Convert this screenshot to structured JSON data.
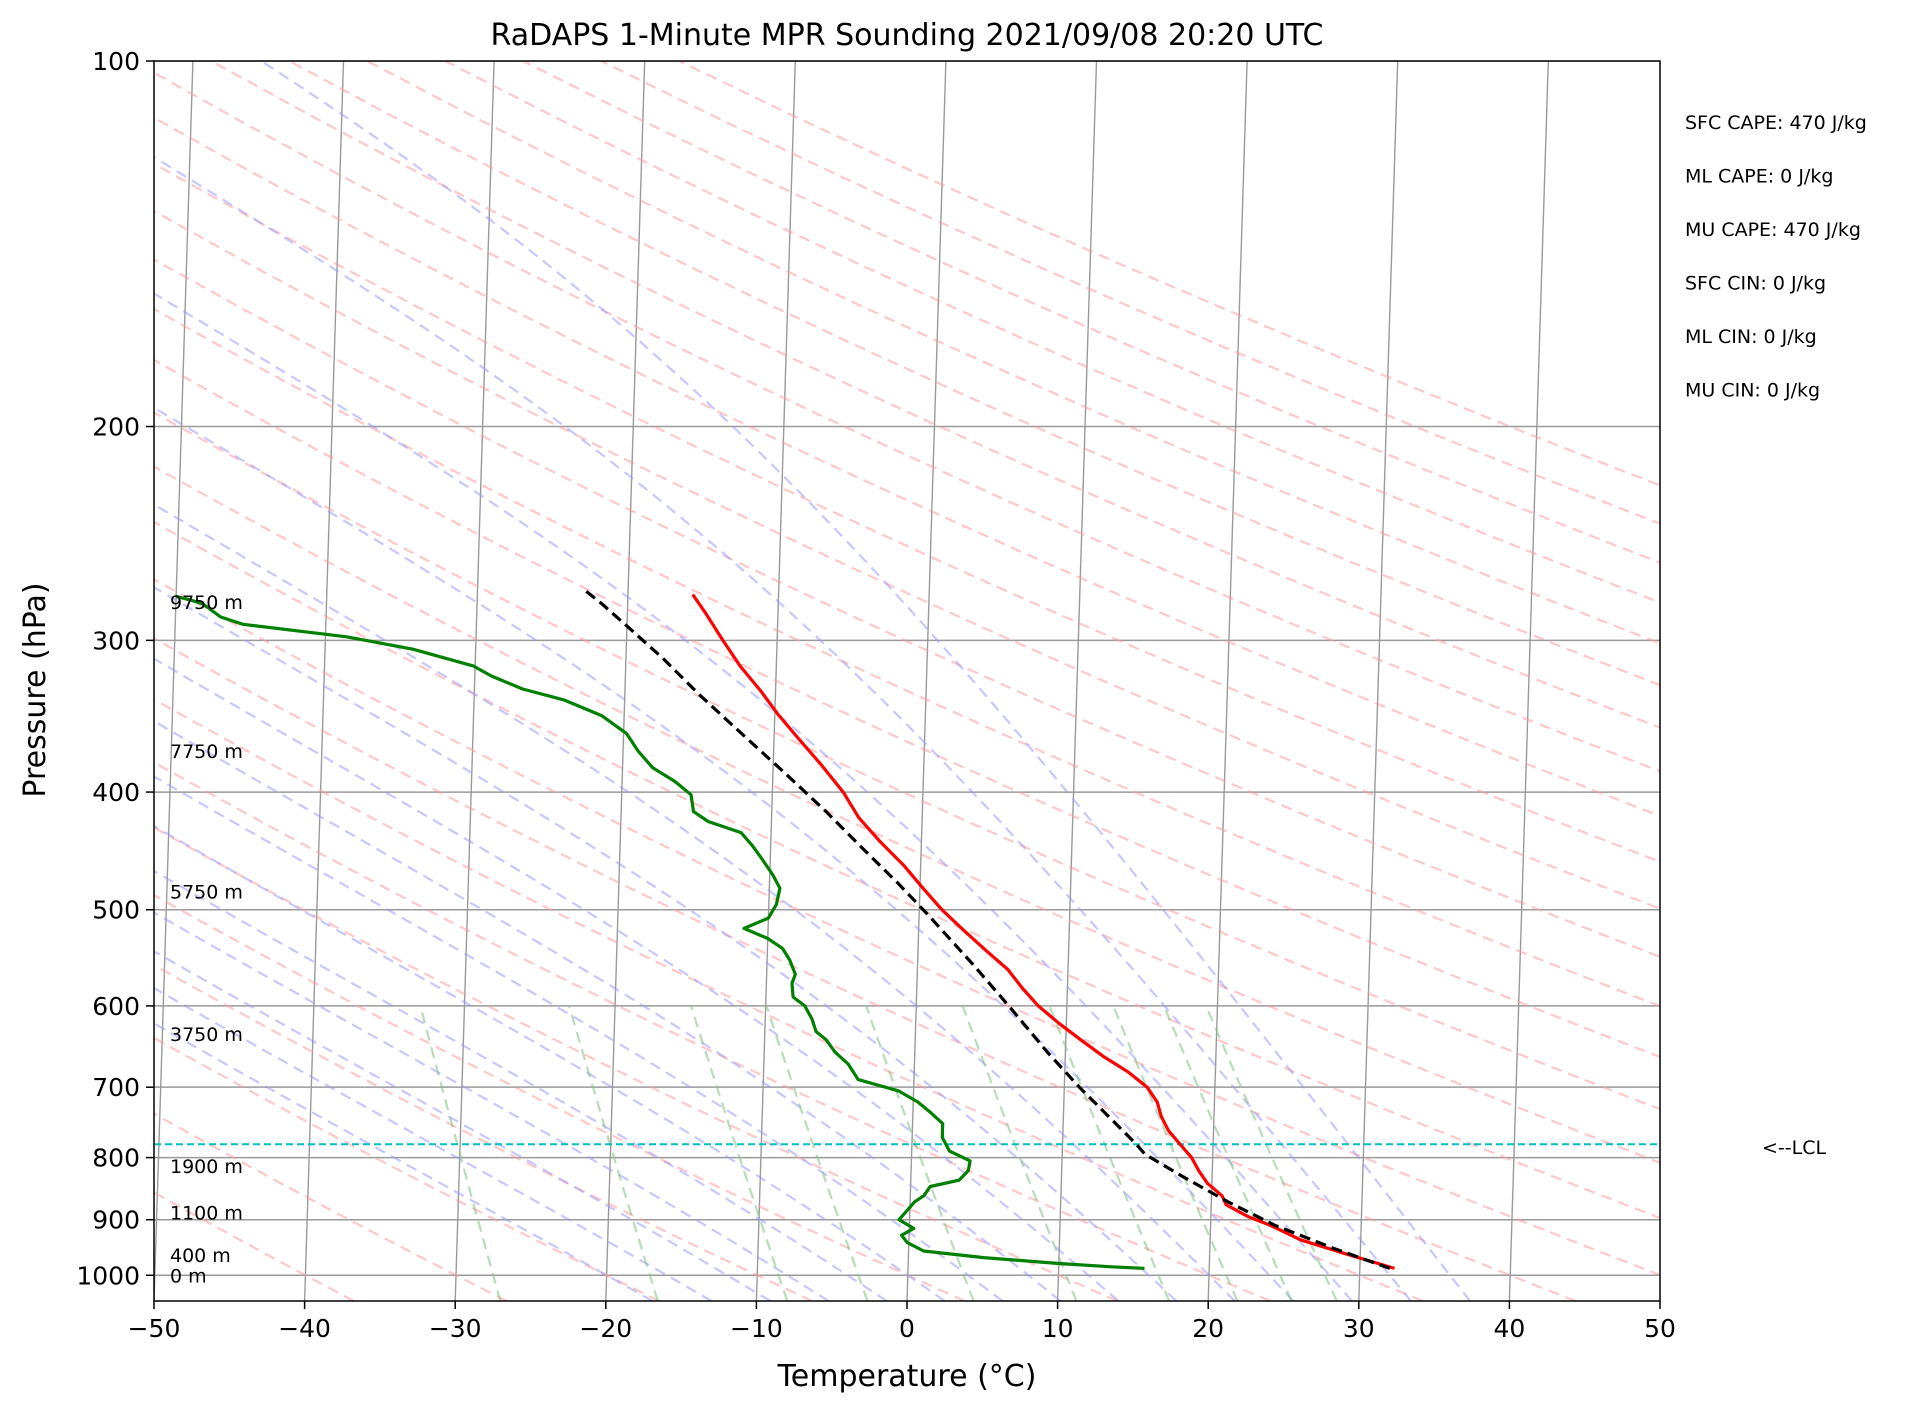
{
  "chart_data": {
    "type": "line",
    "title": "RaDAPS 1-Minute MPR Sounding 2021/09/08 20:20 UTC",
    "xlabel": "Temperature (°C)",
    "ylabel": "Pressure (hPa)",
    "xlim": [
      -50,
      50
    ],
    "ylim": [
      1050,
      100
    ],
    "y_scale": "log",
    "x_ticks": [
      -50,
      -40,
      -30,
      -20,
      -10,
      0,
      10,
      20,
      30,
      40,
      50
    ],
    "x_tick_labels": [
      "−50",
      "−40",
      "−30",
      "−20",
      "−10",
      "0",
      "10",
      "20",
      "30",
      "40",
      "50"
    ],
    "y_ticks": [
      100,
      200,
      300,
      400,
      500,
      600,
      700,
      800,
      900,
      1000
    ],
    "y_tick_labels": [
      "100",
      "200",
      "300",
      "400",
      "500",
      "600",
      "700",
      "800",
      "900",
      "1000"
    ],
    "grid": true,
    "series": [
      {
        "name": "temperature",
        "color": "#ff0000",
        "points": [
          [
            32.3,
            987
          ],
          [
            29,
            960
          ],
          [
            26,
            935
          ],
          [
            24,
            910
          ],
          [
            22.5,
            895
          ],
          [
            21,
            875
          ],
          [
            20.7,
            860
          ],
          [
            19.7,
            840
          ],
          [
            19.1,
            820
          ],
          [
            18.6,
            800
          ],
          [
            17.8,
            780
          ],
          [
            17.0,
            760
          ],
          [
            16.5,
            740
          ],
          [
            16.2,
            720
          ],
          [
            15.5,
            700
          ],
          [
            14.2,
            680
          ],
          [
            12.5,
            660
          ],
          [
            11.0,
            640
          ],
          [
            9.5,
            620
          ],
          [
            8.1,
            600
          ],
          [
            7.0,
            580
          ],
          [
            6.0,
            560
          ],
          [
            4.5,
            540
          ],
          [
            3.0,
            520
          ],
          [
            1.5,
            500
          ],
          [
            0.2,
            480
          ],
          [
            -1.1,
            460
          ],
          [
            -2.7,
            440
          ],
          [
            -4.2,
            420
          ],
          [
            -5.3,
            400
          ],
          [
            -6.8,
            380
          ],
          [
            -8.5,
            360
          ],
          [
            -9.8,
            345
          ],
          [
            -11.0,
            330
          ],
          [
            -12.4,
            315
          ],
          [
            -13.6,
            300
          ],
          [
            -14.8,
            285
          ],
          [
            -15.7,
            275
          ]
        ]
      },
      {
        "name": "dewpoint",
        "color": "#008000",
        "points": [
          [
            15.7,
            987
          ],
          [
            13.5,
            984
          ],
          [
            10,
            978
          ],
          [
            5,
            967
          ],
          [
            1,
            955
          ],
          [
            -0.1,
            940
          ],
          [
            -0.5,
            927
          ],
          [
            0.3,
            915
          ],
          [
            -0.7,
            900
          ],
          [
            -0.2,
            885
          ],
          [
            0.3,
            870
          ],
          [
            0.9,
            860
          ],
          [
            1.3,
            845
          ],
          [
            3.2,
            835
          ],
          [
            3.8,
            820
          ],
          [
            3.9,
            805
          ],
          [
            2.5,
            790
          ],
          [
            2.0,
            770
          ],
          [
            2.0,
            750
          ],
          [
            1.2,
            735
          ],
          [
            0.3,
            720
          ],
          [
            -1.0,
            705
          ],
          [
            -3.7,
            690
          ],
          [
            -4.4,
            670
          ],
          [
            -5.3,
            655
          ],
          [
            -5.9,
            640
          ],
          [
            -6.6,
            630
          ],
          [
            -6.9,
            615
          ],
          [
            -7.4,
            600
          ],
          [
            -8.2,
            590
          ],
          [
            -8.3,
            575
          ],
          [
            -8.1,
            565
          ],
          [
            -8.5,
            550
          ],
          [
            -9.0,
            538
          ],
          [
            -10.0,
            528
          ],
          [
            -11.6,
            518
          ],
          [
            -10.0,
            508
          ],
          [
            -9.5,
            495
          ],
          [
            -9.3,
            480
          ],
          [
            -9.8,
            468
          ],
          [
            -10.5,
            455
          ],
          [
            -11.2,
            443
          ],
          [
            -12.0,
            432
          ],
          [
            -14.2,
            423
          ],
          [
            -15.2,
            415
          ],
          [
            -15.4,
            402
          ],
          [
            -16.5,
            392
          ],
          [
            -18.0,
            382
          ],
          [
            -19.0,
            370
          ],
          [
            -19.8,
            358
          ],
          [
            -21.5,
            346
          ],
          [
            -24.0,
            336
          ],
          [
            -26.8,
            329
          ],
          [
            -28.9,
            321
          ],
          [
            -30.1,
            315
          ],
          [
            -34.2,
            305
          ],
          [
            -38.6,
            298
          ],
          [
            -45.5,
            291
          ],
          [
            -47.0,
            287
          ],
          [
            -48.2,
            280
          ],
          [
            -49.0,
            278
          ],
          [
            -50.0,
            276
          ]
        ]
      },
      {
        "name": "parcel",
        "color": "#000000",
        "dashed": true,
        "points": [
          [
            32.0,
            987
          ],
          [
            28.2,
            950
          ],
          [
            24.3,
            910
          ],
          [
            21.1,
            870
          ],
          [
            18.1,
            830
          ],
          [
            15.5,
            795
          ],
          [
            14.9,
            780
          ],
          [
            13.0,
            740
          ],
          [
            11.0,
            700
          ],
          [
            8.8,
            655
          ],
          [
            6.4,
            605
          ],
          [
            3.7,
            555
          ],
          [
            0.6,
            505
          ],
          [
            -1.5,
            475
          ],
          [
            -3.9,
            445
          ],
          [
            -6.4,
            415
          ],
          [
            -9.3,
            385
          ],
          [
            -12.5,
            355
          ],
          [
            -15.0,
            333
          ],
          [
            -17.6,
            310
          ],
          [
            -20.0,
            292
          ],
          [
            -21.7,
            280
          ],
          [
            -23.0,
            272
          ]
        ]
      }
    ],
    "height_labels": [
      {
        "text": "9750 m",
        "pressure": 279
      },
      {
        "text": "7750 m",
        "pressure": 370
      },
      {
        "text": "5750 m",
        "pressure": 483
      },
      {
        "text": "3750 m",
        "pressure": 633
      },
      {
        "text": "1900 m",
        "pressure": 813
      },
      {
        "text": "1100 m",
        "pressure": 888
      },
      {
        "text": "400 m",
        "pressure": 962
      },
      {
        "text": "0 m",
        "pressure": 1000
      }
    ],
    "lcl": {
      "pressure": 780,
      "label": "<--LCL",
      "color": "#00bfbf"
    },
    "indices": [
      "SFC CAPE: 470 J/kg",
      "ML CAPE: 0 J/kg",
      "MU CAPE: 470 J/kg",
      "SFC CIN: 0 J/kg",
      "ML CIN: 0 J/kg",
      "MU CIN: 0 J/kg"
    ],
    "skew_reference_lines": {
      "isotherm_color": "#9a9a9a",
      "dry_adiabat_color": "#ff9999",
      "moist_adiabat_color": "#9999ff",
      "mixing_ratio_color": "#88c488"
    }
  }
}
